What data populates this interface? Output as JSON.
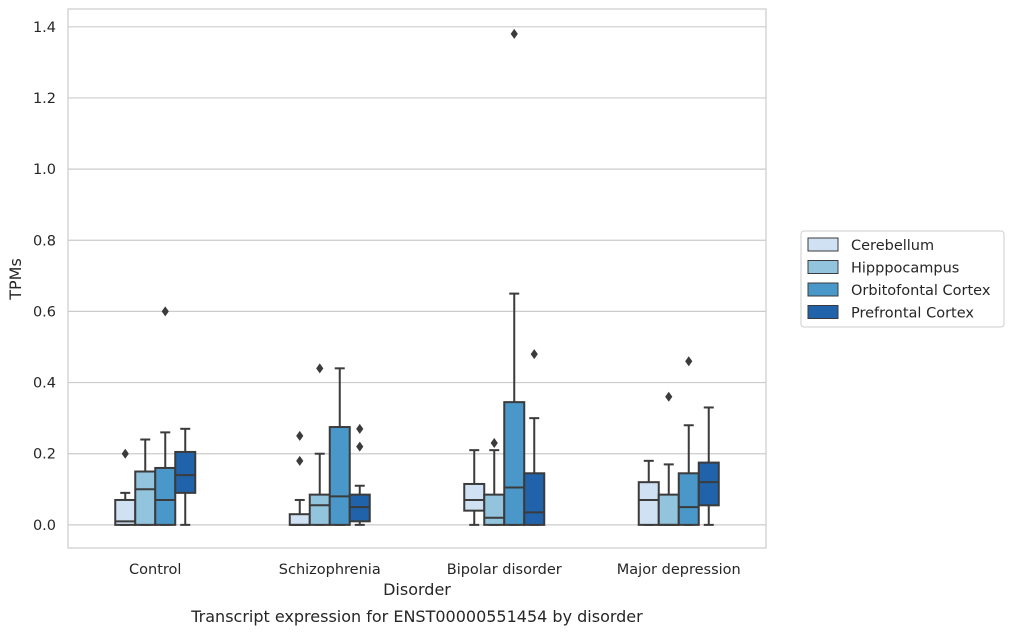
{
  "chart_data": {
    "type": "box",
    "title": "",
    "caption": "Transcript expression for ENST00000551454 by disorder",
    "xlabel": "Disorder",
    "ylabel": "TPMs",
    "ylim": [
      -0.065,
      1.45
    ],
    "yticks": [
      "0.0",
      "0.2",
      "0.4",
      "0.6",
      "0.8",
      "1.0",
      "1.2",
      "1.4"
    ],
    "grid": "horizontal",
    "legend_position": "right",
    "categories": [
      "Control",
      "Schizophrenia",
      "Bipolar disorder",
      "Major depression"
    ],
    "series": [
      {
        "name": "Cerebellum",
        "color": "#cfe1f2",
        "boxes": [
          {
            "q1": 0.0,
            "median": 0.01,
            "q3": 0.07,
            "whislo": 0.0,
            "whishi": 0.09,
            "fliers": [
              0.2
            ]
          },
          {
            "q1": 0.0,
            "median": 0.0,
            "q3": 0.03,
            "whislo": 0.0,
            "whishi": 0.07,
            "fliers": [
              0.18,
              0.25
            ]
          },
          {
            "q1": 0.04,
            "median": 0.07,
            "q3": 0.115,
            "whislo": 0.0,
            "whishi": 0.21,
            "fliers": []
          },
          {
            "q1": 0.0,
            "median": 0.07,
            "q3": 0.12,
            "whislo": 0.0,
            "whishi": 0.18,
            "fliers": []
          }
        ]
      },
      {
        "name": "Hipppocampus",
        "color": "#93c4de",
        "boxes": [
          {
            "q1": 0.0,
            "median": 0.1,
            "q3": 0.15,
            "whislo": 0.0,
            "whishi": 0.24,
            "fliers": []
          },
          {
            "q1": 0.0,
            "median": 0.055,
            "q3": 0.085,
            "whislo": 0.0,
            "whishi": 0.2,
            "fliers": [
              0.44
            ]
          },
          {
            "q1": 0.0,
            "median": 0.02,
            "q3": 0.085,
            "whislo": 0.0,
            "whishi": 0.21,
            "fliers": [
              0.23
            ]
          },
          {
            "q1": 0.0,
            "median": 0.0,
            "q3": 0.085,
            "whislo": 0.0,
            "whishi": 0.17,
            "fliers": [
              0.36
            ]
          }
        ]
      },
      {
        "name": "Orbitofontal Cortex",
        "color": "#4a98c9",
        "boxes": [
          {
            "q1": 0.0,
            "median": 0.07,
            "q3": 0.16,
            "whislo": 0.0,
            "whishi": 0.26,
            "fliers": [
              0.6
            ]
          },
          {
            "q1": 0.0,
            "median": 0.08,
            "q3": 0.275,
            "whislo": 0.0,
            "whishi": 0.44,
            "fliers": []
          },
          {
            "q1": 0.0,
            "median": 0.105,
            "q3": 0.345,
            "whislo": 0.0,
            "whishi": 0.65,
            "fliers": [
              1.38
            ]
          },
          {
            "q1": 0.0,
            "median": 0.05,
            "q3": 0.145,
            "whislo": 0.0,
            "whishi": 0.28,
            "fliers": [
              0.46
            ]
          }
        ]
      },
      {
        "name": "Prefrontal Cortex",
        "color": "#2163aa",
        "boxes": [
          {
            "q1": 0.09,
            "median": 0.14,
            "q3": 0.205,
            "whislo": 0.0,
            "whishi": 0.27,
            "fliers": []
          },
          {
            "q1": 0.01,
            "median": 0.05,
            "q3": 0.085,
            "whislo": 0.0,
            "whishi": 0.11,
            "fliers": [
              0.22,
              0.27
            ]
          },
          {
            "q1": 0.0,
            "median": 0.035,
            "q3": 0.145,
            "whislo": 0.0,
            "whishi": 0.3,
            "fliers": [
              0.48
            ]
          },
          {
            "q1": 0.055,
            "median": 0.12,
            "q3": 0.175,
            "whislo": 0.0,
            "whishi": 0.33,
            "fliers": []
          }
        ]
      }
    ]
  }
}
